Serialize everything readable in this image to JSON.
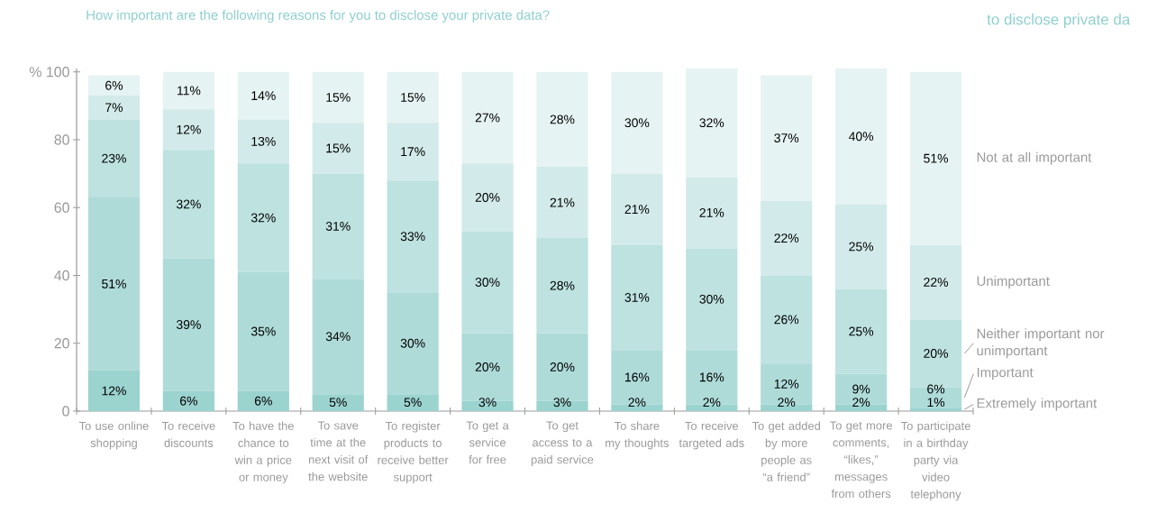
{
  "chart_data": {
    "type": "bar",
    "stacked": true,
    "title": "How important are the following reasons for you to disclose your private data?",
    "annotations": [
      "to disclose private da"
    ],
    "categories": [
      "To use online shopping",
      "To receive discounts",
      "To have the chance to win a price or money",
      "To save time at the next visit of the website",
      "To register products to receive better support",
      "To get a service for free",
      "To get access to a paid service",
      "To share my thoughts",
      "To receive targeted ads",
      "To get added by more people as “a friend”",
      "To get more comments, “likes,” messages from others",
      "To participate in a birthday party via video telephony"
    ],
    "series": [
      {
        "name": "Extremely important",
        "color": "#9bd3cf",
        "values": [
          12,
          6,
          6,
          5,
          5,
          3,
          3,
          2,
          2,
          2,
          2,
          1
        ],
        "value_labels": [
          "12%",
          "6%",
          "6%",
          "5%",
          "5%",
          "3%",
          "3%",
          "2%",
          "2%",
          "2%",
          "2%",
          "1%"
        ]
      },
      {
        "name": "Important",
        "color": "#aedbd8",
        "values": [
          51,
          39,
          35,
          34,
          30,
          20,
          20,
          16,
          16,
          12,
          9,
          6
        ],
        "value_labels": [
          "51%",
          "39%",
          "35%",
          "34%",
          "30%",
          "20%",
          "20%",
          "16%",
          "16%",
          "12%",
          "9%",
          "6%"
        ]
      },
      {
        "name": "Neither important nor unimportant",
        "color": "#bde2e0",
        "values": [
          23,
          32,
          32,
          31,
          33,
          30,
          28,
          31,
          30,
          26,
          25,
          20
        ],
        "value_labels": [
          "23%",
          "32%",
          "32%",
          "31%",
          "33%",
          "30%",
          "28%",
          "31%",
          "30%",
          "26%",
          "25%",
          "20%"
        ]
      },
      {
        "name": "Unimportant",
        "color": "#d2eae9",
        "values": [
          7,
          12,
          13,
          15,
          17,
          20,
          21,
          21,
          21,
          22,
          25,
          22
        ],
        "value_labels": [
          "7%",
          "12%",
          "13%",
          "15%",
          "17%",
          "20%",
          "21%",
          "21%",
          "21%",
          "22%",
          "25%",
          "22%"
        ]
      },
      {
        "name": "Not at all important",
        "color": "#e6f3f3",
        "values": [
          6,
          11,
          14,
          15,
          15,
          27,
          28,
          30,
          32,
          37,
          40,
          51
        ],
        "value_labels": [
          "6%",
          "11%",
          "14%",
          "15%",
          "15%",
          "27%",
          "28%",
          "30%",
          "32%",
          "37%",
          "40%",
          "51%"
        ]
      }
    ],
    "ylim": [
      0,
      101
    ],
    "yticks": [
      0,
      20,
      40,
      60,
      80,
      {
        "value": 100,
        "label": "% 100"
      }
    ]
  }
}
